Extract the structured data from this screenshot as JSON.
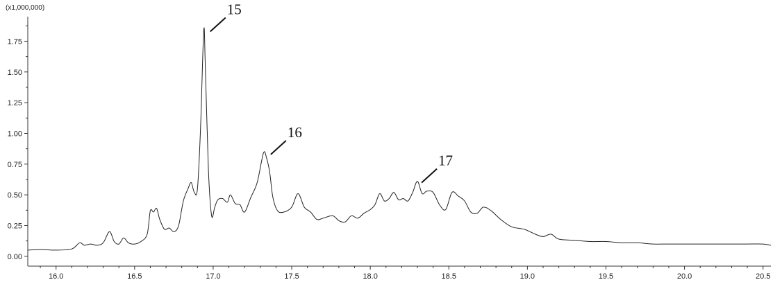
{
  "chart_data": {
    "type": "line",
    "y_multiplier": "(x1,000,000)",
    "xlim": [
      15.82,
      20.55
    ],
    "ylim": [
      -0.08,
      1.95
    ],
    "x_ticks": [
      "16.0",
      "16.5",
      "17.0",
      "17.5",
      "18.0",
      "18.5",
      "19.0",
      "19.5",
      "20.0",
      "20.5"
    ],
    "y_ticks": [
      "0.00",
      "0.25",
      "0.50",
      "0.75",
      "1.00",
      "1.25",
      "1.50",
      "1.75"
    ],
    "grid": false,
    "series": [
      {
        "x": [
          15.82,
          15.9,
          16.0,
          16.1,
          16.15,
          16.18,
          16.22,
          16.26,
          16.3,
          16.34,
          16.37,
          16.4,
          16.43,
          16.46,
          16.5,
          16.54,
          16.58,
          16.6,
          16.62,
          16.64,
          16.66,
          16.69,
          16.72,
          16.75,
          16.78,
          16.81,
          16.84,
          16.86,
          16.88,
          16.9,
          16.92,
          16.94,
          16.95,
          16.97,
          16.99,
          17.01,
          17.03,
          17.06,
          17.09,
          17.11,
          17.14,
          17.17,
          17.2,
          17.24,
          17.28,
          17.32,
          17.34,
          17.36,
          17.38,
          17.41,
          17.45,
          17.5,
          17.54,
          17.58,
          17.62,
          17.66,
          17.7,
          17.76,
          17.8,
          17.84,
          17.88,
          17.92,
          17.96,
          18.0,
          18.03,
          18.06,
          18.09,
          18.12,
          18.15,
          18.18,
          18.21,
          18.24,
          18.27,
          18.3,
          18.33,
          18.36,
          18.4,
          18.44,
          18.48,
          18.52,
          18.56,
          18.6,
          18.64,
          18.68,
          18.72,
          18.77,
          18.83,
          18.9,
          18.98,
          19.05,
          19.1,
          19.15,
          19.2,
          19.3,
          19.4,
          19.5,
          19.6,
          19.7,
          19.8,
          19.9,
          20.0,
          20.1,
          20.2,
          20.25,
          20.3,
          20.4,
          20.5,
          20.55
        ],
        "values": [
          0.05,
          0.055,
          0.05,
          0.06,
          0.11,
          0.09,
          0.1,
          0.09,
          0.11,
          0.2,
          0.12,
          0.1,
          0.15,
          0.11,
          0.1,
          0.12,
          0.18,
          0.37,
          0.36,
          0.39,
          0.3,
          0.22,
          0.23,
          0.2,
          0.25,
          0.45,
          0.55,
          0.6,
          0.52,
          0.55,
          1.05,
          1.84,
          1.55,
          0.7,
          0.33,
          0.4,
          0.46,
          0.47,
          0.44,
          0.5,
          0.43,
          0.42,
          0.36,
          0.48,
          0.6,
          0.84,
          0.8,
          0.68,
          0.48,
          0.37,
          0.36,
          0.4,
          0.51,
          0.4,
          0.36,
          0.3,
          0.31,
          0.33,
          0.29,
          0.28,
          0.33,
          0.31,
          0.35,
          0.38,
          0.42,
          0.51,
          0.45,
          0.47,
          0.52,
          0.46,
          0.47,
          0.45,
          0.52,
          0.61,
          0.51,
          0.53,
          0.52,
          0.42,
          0.38,
          0.52,
          0.49,
          0.45,
          0.36,
          0.35,
          0.4,
          0.37,
          0.3,
          0.24,
          0.22,
          0.18,
          0.16,
          0.18,
          0.14,
          0.13,
          0.12,
          0.12,
          0.11,
          0.11,
          0.1,
          0.1,
          0.1,
          0.1,
          0.1,
          0.1,
          0.1,
          0.1,
          0.1,
          0.09
        ]
      }
    ],
    "annotations": [
      {
        "text": "15",
        "x": 16.955,
        "y": 1.84
      },
      {
        "text": "16",
        "x": 17.34,
        "y": 0.84
      },
      {
        "text": "17",
        "x": 18.3,
        "y": 0.61
      }
    ]
  }
}
